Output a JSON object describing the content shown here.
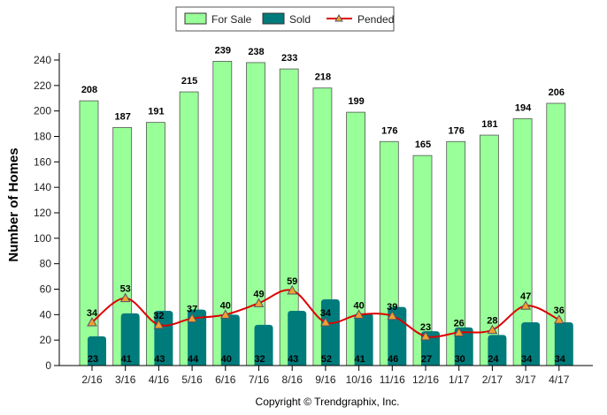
{
  "chart_data": {
    "type": "bar",
    "title": "",
    "xlabel": "",
    "ylabel": "Number of Homes",
    "ylim": [
      0,
      240
    ],
    "yticks": [
      0,
      20,
      40,
      60,
      80,
      100,
      120,
      140,
      160,
      180,
      200,
      220,
      240
    ],
    "categories": [
      "2/16",
      "3/16",
      "4/16",
      "5/16",
      "6/16",
      "7/16",
      "8/16",
      "9/16",
      "10/16",
      "11/16",
      "12/16",
      "1/17",
      "2/17",
      "3/17",
      "4/17"
    ],
    "series": [
      {
        "name": "For Sale",
        "type": "bar",
        "color": "#99ff99",
        "values": [
          208,
          187,
          191,
          215,
          239,
          238,
          233,
          218,
          199,
          176,
          165,
          176,
          181,
          194,
          206
        ]
      },
      {
        "name": "Sold",
        "type": "bar",
        "color": "#007b7b",
        "values": [
          23,
          41,
          43,
          44,
          40,
          32,
          43,
          52,
          41,
          46,
          27,
          30,
          24,
          34,
          34
        ]
      },
      {
        "name": "Pended",
        "type": "line",
        "color": "#dd0000",
        "values": [
          34,
          53,
          32,
          37,
          40,
          49,
          59,
          34,
          40,
          39,
          23,
          26,
          28,
          47,
          36
        ]
      }
    ],
    "legend": {
      "placement": "top-center"
    },
    "grid": false
  },
  "footer": {
    "copyright": "Copyright © Trendgraphix, Inc."
  }
}
